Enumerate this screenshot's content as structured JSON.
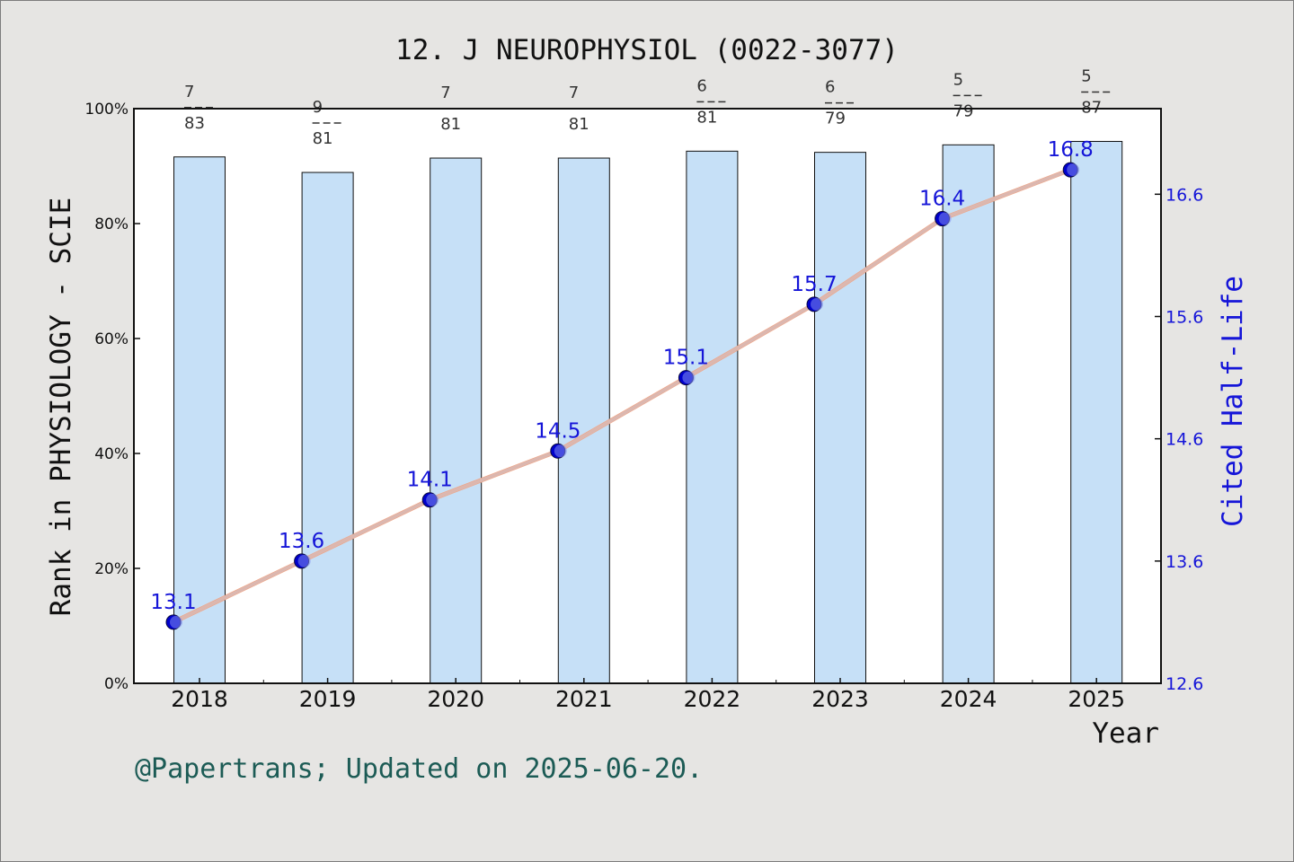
{
  "chart_data": {
    "type": "bar",
    "title": "12. J NEUROPHYSIOL (0022-3077)",
    "xlabel": "Year",
    "ylabel": "Rank in PHYSIOLOGY - SCIE",
    "y2label": "Cited Half-Life",
    "categories": [
      "2018",
      "2019",
      "2020",
      "2021",
      "2022",
      "2023",
      "2024",
      "2025"
    ],
    "ylim": [
      0,
      100
    ],
    "yticks": [
      "0%",
      "20%",
      "40%",
      "60%",
      "80%",
      "100%"
    ],
    "y2lim": [
      12.6,
      17.3
    ],
    "y2ticks": [
      "12.6",
      "13.6",
      "14.6",
      "15.6",
      "16.6"
    ],
    "series": [
      {
        "type": "bar",
        "values": [
          91.6,
          88.9,
          91.4,
          91.4,
          92.6,
          92.4,
          93.7,
          94.3
        ],
        "rank": [
          "7",
          "9",
          "7",
          "7",
          "6",
          "6",
          "5",
          "5"
        ],
        "total": [
          "83",
          "81",
          "81",
          "81",
          "81",
          "79",
          "79",
          "87"
        ],
        "color": "#c6e0f7"
      },
      {
        "type": "line",
        "axis": "right",
        "values": [
          13.1,
          13.6,
          14.1,
          14.5,
          15.1,
          15.7,
          16.4,
          16.8
        ],
        "labels": [
          "13.1",
          "13.6",
          "14.1",
          "14.5",
          "15.1",
          "15.7",
          "16.4",
          "16.8"
        ],
        "color": "#f4a07c",
        "marker_color": "#0000cc"
      }
    ],
    "grid": false,
    "footer": "@Papertrans; Updated on 2025-06-20."
  }
}
